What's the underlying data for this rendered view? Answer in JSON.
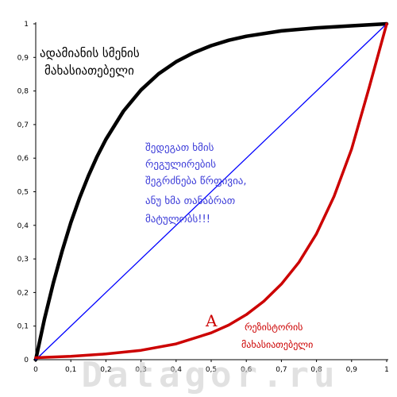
{
  "chart_data": {
    "type": "line",
    "xlim": [
      0,
      1
    ],
    "ylim": [
      0,
      1
    ],
    "grid": false,
    "legend": "none",
    "x_ticks": [
      "0",
      "0,1",
      "0,2",
      "0,3",
      "0,4",
      "0,5",
      "0,6",
      "0,7",
      "0,8",
      "0,9",
      "1"
    ],
    "y_ticks": [
      "0",
      "0,1",
      "0,2",
      "0,3",
      "0,4",
      "0,5",
      "0,6",
      "0,7",
      "0,8",
      "0,9",
      "1"
    ],
    "series": [
      {
        "color": "#000000",
        "x": [
          0,
          0.025,
          0.05,
          0.075,
          0.1,
          0.125,
          0.15,
          0.175,
          0.2,
          0.25,
          0.3,
          0.35,
          0.4,
          0.45,
          0.5,
          0.55,
          0.6,
          0.7,
          0.8,
          0.9,
          1.0
        ],
        "y": [
          0,
          0.121,
          0.228,
          0.323,
          0.408,
          0.482,
          0.547,
          0.605,
          0.656,
          0.74,
          0.803,
          0.851,
          0.887,
          0.914,
          0.935,
          0.951,
          0.963,
          0.979,
          0.988,
          0.994,
          1.0
        ]
      },
      {
        "color": "#0000ff",
        "x": [
          0,
          1
        ],
        "y": [
          0,
          1
        ]
      },
      {
        "color": "#cc0000",
        "x": [
          0,
          0.1,
          0.2,
          0.3,
          0.4,
          0.5,
          0.55,
          0.6,
          0.65,
          0.7,
          0.75,
          0.8,
          0.85,
          0.9,
          0.95,
          1.0
        ],
        "y": [
          0.006,
          0.01,
          0.017,
          0.028,
          0.047,
          0.08,
          0.103,
          0.134,
          0.174,
          0.225,
          0.29,
          0.375,
          0.486,
          0.627,
          0.81,
          1.0
        ]
      }
    ],
    "annotations": {
      "black_label_line1": "ადამიანის სმენის",
      "black_label_line2": "მახასიათებელი",
      "blue_label_lines": [
        "შედეგათ ხმის",
        "რეგულირების",
        "შეგრძნება წრფივია,",
        "ანუ ხმა თანაბრათ",
        "მატულობს!!!"
      ],
      "red_label_line1": "რეზისტორის",
      "red_label_line2": "მახასიათებელი",
      "point_label": "A"
    },
    "watermark": "Datagor.ru"
  }
}
